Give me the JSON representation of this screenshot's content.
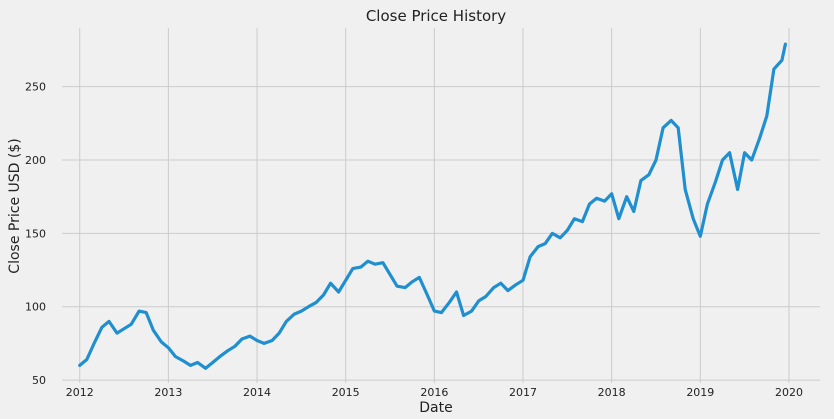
{
  "chart_data": {
    "type": "line",
    "title": "Close Price History",
    "xlabel": "Date",
    "ylabel": "Close Price USD ($)",
    "xlim": [
      2011.8,
      2020.35
    ],
    "ylim": [
      48,
      290
    ],
    "x_ticks": [
      2012,
      2013,
      2014,
      2015,
      2016,
      2017,
      2018,
      2019,
      2020
    ],
    "y_ticks": [
      50,
      100,
      150,
      200,
      250
    ],
    "grid": true,
    "series_color": "#1f8fcf",
    "series": [
      {
        "x": [
          2012.0,
          2012.08,
          2012.17,
          2012.25,
          2012.33,
          2012.42,
          2012.5,
          2012.58,
          2012.67,
          2012.75,
          2012.83,
          2012.92,
          2013.0,
          2013.08,
          2013.17,
          2013.25,
          2013.33,
          2013.42,
          2013.5,
          2013.58,
          2013.67,
          2013.75,
          2013.83,
          2013.92,
          2014.0,
          2014.08,
          2014.17,
          2014.25,
          2014.33,
          2014.42,
          2014.5,
          2014.58,
          2014.67,
          2014.75,
          2014.83,
          2014.92,
          2015.0,
          2015.08,
          2015.17,
          2015.25,
          2015.33,
          2015.42,
          2015.5,
          2015.58,
          2015.67,
          2015.75,
          2015.83,
          2015.92,
          2016.0,
          2016.08,
          2016.17,
          2016.25,
          2016.33,
          2016.42,
          2016.5,
          2016.58,
          2016.67,
          2016.75,
          2016.83,
          2016.92,
          2017.0,
          2017.08,
          2017.17,
          2017.25,
          2017.33,
          2017.42,
          2017.5,
          2017.58,
          2017.67,
          2017.75,
          2017.83,
          2017.92,
          2018.0,
          2018.08,
          2018.17,
          2018.25,
          2018.33,
          2018.42,
          2018.5,
          2018.58,
          2018.67,
          2018.75,
          2018.83,
          2018.92,
          2019.0,
          2019.08,
          2019.17,
          2019.25,
          2019.33,
          2019.42,
          2019.5,
          2019.58,
          2019.67,
          2019.75,
          2019.83,
          2019.92,
          2019.96
        ],
        "values": [
          60,
          64,
          76,
          86,
          90,
          82,
          85,
          88,
          97,
          96,
          84,
          76,
          72,
          66,
          63,
          60,
          62,
          58,
          62,
          66,
          70,
          73,
          78,
          80,
          77,
          75,
          77,
          82,
          90,
          95,
          97,
          100,
          103,
          108,
          116,
          110,
          118,
          126,
          127,
          131,
          129,
          130,
          122,
          114,
          113,
          117,
          120,
          108,
          97,
          96,
          103,
          110,
          94,
          97,
          104,
          107,
          113,
          116,
          111,
          115,
          118,
          134,
          141,
          143,
          150,
          147,
          152,
          160,
          158,
          170,
          174,
          172,
          177,
          160,
          175,
          165,
          186,
          190,
          200,
          222,
          227,
          222,
          180,
          160,
          148,
          170,
          185,
          200,
          205,
          180,
          205,
          200,
          215,
          230,
          262,
          268,
          279
        ]
      }
    ]
  }
}
